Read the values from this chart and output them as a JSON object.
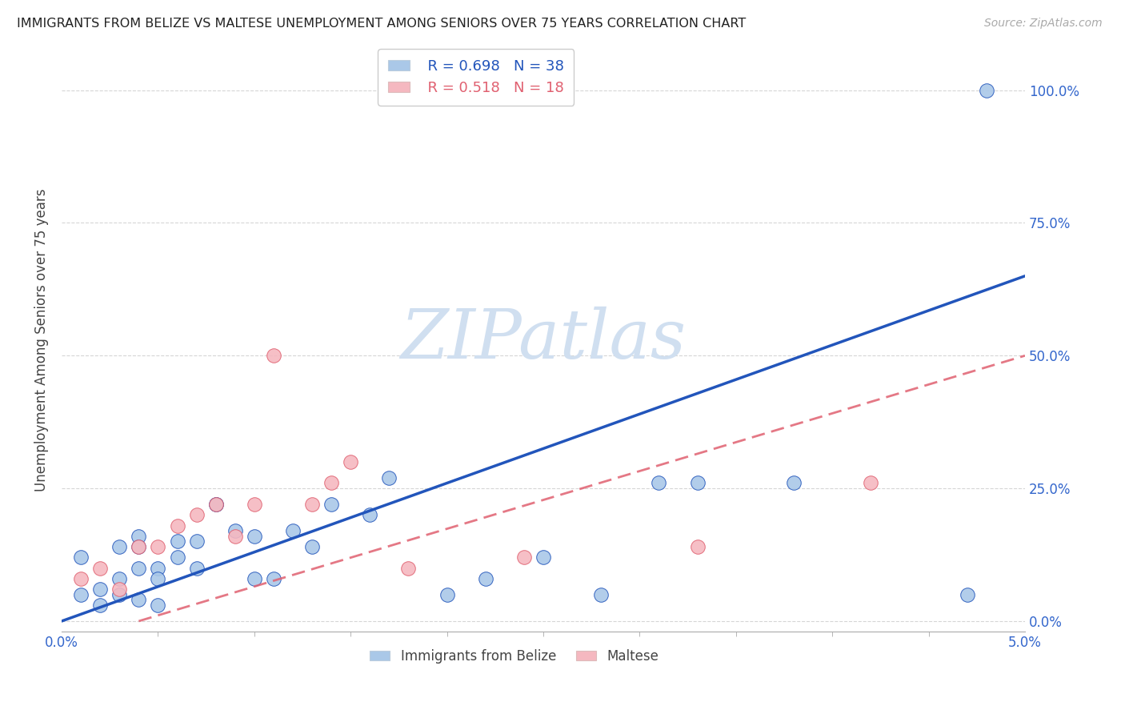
{
  "title": "IMMIGRANTS FROM BELIZE VS MALTESE UNEMPLOYMENT AMONG SENIORS OVER 75 YEARS CORRELATION CHART",
  "source": "Source: ZipAtlas.com",
  "ylabel": "Unemployment Among Seniors over 75 years",
  "xlim": [
    0.0,
    0.05
  ],
  "ylim": [
    -0.02,
    1.08
  ],
  "ytick_labels": [
    "0.0%",
    "25.0%",
    "50.0%",
    "75.0%",
    "100.0%"
  ],
  "ytick_values": [
    0.0,
    0.25,
    0.5,
    0.75,
    1.0
  ],
  "xtick_minor_values": [
    0.005,
    0.01,
    0.015,
    0.02,
    0.025,
    0.03,
    0.035,
    0.04,
    0.045,
    0.05
  ],
  "belize_R": 0.698,
  "belize_N": 38,
  "maltese_R": 0.518,
  "maltese_N": 18,
  "belize_color": "#aac8e8",
  "belize_line_color": "#2255bb",
  "maltese_color": "#f5b8c0",
  "maltese_line_color": "#e06070",
  "watermark_color": "#d0dff0",
  "belize_points_x": [
    0.001,
    0.001,
    0.002,
    0.002,
    0.003,
    0.003,
    0.003,
    0.004,
    0.004,
    0.004,
    0.004,
    0.005,
    0.005,
    0.005,
    0.006,
    0.006,
    0.007,
    0.007,
    0.008,
    0.008,
    0.009,
    0.01,
    0.01,
    0.011,
    0.012,
    0.013,
    0.014,
    0.016,
    0.017,
    0.02,
    0.022,
    0.025,
    0.028,
    0.031,
    0.033,
    0.038,
    0.047,
    0.048
  ],
  "belize_points_y": [
    0.05,
    0.12,
    0.06,
    0.03,
    0.14,
    0.08,
    0.05,
    0.16,
    0.14,
    0.1,
    0.04,
    0.1,
    0.08,
    0.03,
    0.15,
    0.12,
    0.15,
    0.1,
    0.22,
    0.22,
    0.17,
    0.16,
    0.08,
    0.08,
    0.17,
    0.14,
    0.22,
    0.2,
    0.27,
    0.05,
    0.08,
    0.12,
    0.05,
    0.26,
    0.26,
    0.26,
    0.05,
    1.0
  ],
  "maltese_points_x": [
    0.001,
    0.002,
    0.003,
    0.004,
    0.005,
    0.006,
    0.007,
    0.008,
    0.009,
    0.01,
    0.011,
    0.013,
    0.014,
    0.015,
    0.018,
    0.024,
    0.033,
    0.042
  ],
  "maltese_points_y": [
    0.08,
    0.1,
    0.06,
    0.14,
    0.14,
    0.18,
    0.2,
    0.22,
    0.16,
    0.22,
    0.5,
    0.22,
    0.26,
    0.3,
    0.1,
    0.12,
    0.14,
    0.26
  ],
  "belize_line_x": [
    0.0,
    0.05
  ],
  "belize_line_y": [
    0.0,
    0.65
  ],
  "maltese_line_x": [
    0.004,
    0.05
  ],
  "maltese_line_y": [
    0.0,
    0.5
  ]
}
